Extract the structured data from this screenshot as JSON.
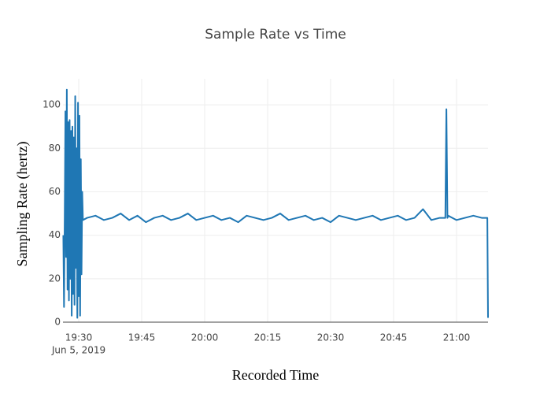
{
  "chart_data": {
    "type": "line",
    "title": "Sample Rate vs Time",
    "xlabel": "Recorded Time",
    "ylabel": "Sampling Rate (hertz)",
    "x_sublabel": "Jun 5, 2019",
    "xlim": [
      "2019-06-05 19:26:15",
      "2019-06-05 21:07:30"
    ],
    "xticks": [
      {
        "value": "2019-06-05 19:30",
        "label": "19:30"
      },
      {
        "value": "2019-06-05 19:45",
        "label": "19:45"
      },
      {
        "value": "2019-06-05 20:00",
        "label": "20:00"
      },
      {
        "value": "2019-06-05 20:15",
        "label": "20:15"
      },
      {
        "value": "2019-06-05 20:30",
        "label": "20:30"
      },
      {
        "value": "2019-06-05 20:45",
        "label": "20:45"
      },
      {
        "value": "2019-06-05 21:00",
        "label": "21:00"
      }
    ],
    "ylim": [
      0,
      112
    ],
    "yticks": [
      0,
      20,
      40,
      60,
      80,
      100
    ],
    "grid": true,
    "series": [
      {
        "name": "Sampling Rate",
        "color": "#1f77b4",
        "x": [
          "2019-06-05 19:26:20",
          "2019-06-05 19:26:30",
          "2019-06-05 19:26:40",
          "2019-06-05 19:26:50",
          "2019-06-05 19:27:00",
          "2019-06-05 19:27:10",
          "2019-06-05 19:27:20",
          "2019-06-05 19:27:30",
          "2019-06-05 19:27:40",
          "2019-06-05 19:27:50",
          "2019-06-05 19:28:00",
          "2019-06-05 19:28:10",
          "2019-06-05 19:28:20",
          "2019-06-05 19:28:30",
          "2019-06-05 19:28:40",
          "2019-06-05 19:28:50",
          "2019-06-05 19:29:00",
          "2019-06-05 19:29:10",
          "2019-06-05 19:29:20",
          "2019-06-05 19:29:30",
          "2019-06-05 19:29:40",
          "2019-06-05 19:29:50",
          "2019-06-05 19:30:00",
          "2019-06-05 19:30:10",
          "2019-06-05 19:30:20",
          "2019-06-05 19:30:30",
          "2019-06-05 19:30:40",
          "2019-06-05 19:30:50",
          "2019-06-05 19:31:00",
          "2019-06-05 19:32:00",
          "2019-06-05 19:34:00",
          "2019-06-05 19:36:00",
          "2019-06-05 19:38:00",
          "2019-06-05 19:40:00",
          "2019-06-05 19:42:00",
          "2019-06-05 19:44:00",
          "2019-06-05 19:46:00",
          "2019-06-05 19:48:00",
          "2019-06-05 19:50:00",
          "2019-06-05 19:52:00",
          "2019-06-05 19:54:00",
          "2019-06-05 19:56:00",
          "2019-06-05 19:58:00",
          "2019-06-05 20:00:00",
          "2019-06-05 20:02:00",
          "2019-06-05 20:04:00",
          "2019-06-05 20:06:00",
          "2019-06-05 20:08:00",
          "2019-06-05 20:10:00",
          "2019-06-05 20:12:00",
          "2019-06-05 20:14:00",
          "2019-06-05 20:16:00",
          "2019-06-05 20:18:00",
          "2019-06-05 20:20:00",
          "2019-06-05 20:22:00",
          "2019-06-05 20:24:00",
          "2019-06-05 20:26:00",
          "2019-06-05 20:28:00",
          "2019-06-05 20:30:00",
          "2019-06-05 20:32:00",
          "2019-06-05 20:34:00",
          "2019-06-05 20:36:00",
          "2019-06-05 20:38:00",
          "2019-06-05 20:40:00",
          "2019-06-05 20:42:00",
          "2019-06-05 20:44:00",
          "2019-06-05 20:46:00",
          "2019-06-05 20:48:00",
          "2019-06-05 20:50:00",
          "2019-06-05 20:52:00",
          "2019-06-05 20:54:00",
          "2019-06-05 20:56:00",
          "2019-06-05 20:57:20",
          "2019-06-05 20:57:35",
          "2019-06-05 20:57:50",
          "2019-06-05 20:58:00",
          "2019-06-05 21:00:00",
          "2019-06-05 21:02:00",
          "2019-06-05 21:04:00",
          "2019-06-05 21:06:00",
          "2019-06-05 21:07:20",
          "2019-06-05 21:07:30"
        ],
        "values": [
          40,
          7,
          48,
          97,
          30,
          107,
          15,
          92,
          10,
          93,
          20,
          88,
          3,
          90,
          13,
          85,
          8,
          104,
          25,
          80,
          2,
          101,
          12,
          95,
          3,
          75,
          22,
          60,
          47,
          48,
          49,
          47,
          48,
          50,
          47,
          49,
          46,
          48,
          49,
          47,
          48,
          50,
          47,
          48,
          49,
          47,
          48,
          46,
          49,
          48,
          47,
          48,
          50,
          47,
          48,
          49,
          47,
          48,
          46,
          49,
          48,
          47,
          48,
          49,
          47,
          48,
          49,
          47,
          48,
          52,
          47,
          48,
          48,
          98,
          48,
          49,
          47,
          48,
          49,
          48,
          48,
          2
        ]
      }
    ]
  }
}
